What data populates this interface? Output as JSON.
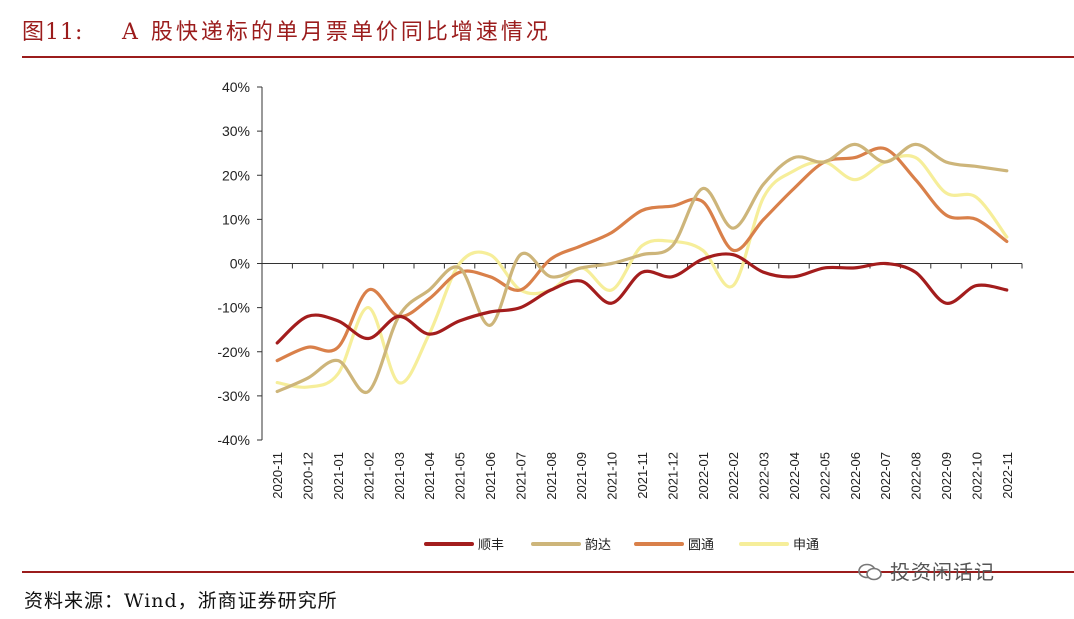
{
  "header": {
    "figure_label": "图11:",
    "title": "A 股快递标的单月票单价同比增速情况"
  },
  "source_note": "资料来源：Wind，浙商证券研究所",
  "watermark": "投资闲话记",
  "chart_data": {
    "type": "line",
    "title": "",
    "xlabel": "",
    "ylabel": "",
    "ylim": [
      -40,
      40
    ],
    "y_ticks": [
      "40%",
      "30%",
      "20%",
      "10%",
      "0%",
      "-10%",
      "-20%",
      "-30%",
      "-40%"
    ],
    "y_tick_values": [
      40,
      30,
      20,
      10,
      0,
      -10,
      -20,
      -30,
      -40
    ],
    "categories": [
      "2020-11",
      "2020-12",
      "2021-01",
      "2021-02",
      "2021-03",
      "2021-04",
      "2021-05",
      "2021-06",
      "2021-07",
      "2021-08",
      "2021-09",
      "2021-10",
      "2021-11",
      "2021-12",
      "2022-01",
      "2022-02",
      "2022-03",
      "2022-04",
      "2022-05",
      "2022-06",
      "2022-07",
      "2022-08",
      "2022-09",
      "2022-10",
      "2022-11"
    ],
    "legend_position": "bottom",
    "grid": false,
    "series": [
      {
        "name": "顺丰",
        "color": "#a31d1d",
        "values": [
          -18,
          -12,
          -13,
          -17,
          -12,
          -16,
          -13,
          -11,
          -10,
          -6,
          -4,
          -9,
          -2,
          -3,
          1,
          2,
          -2,
          -3,
          -1,
          -1,
          0,
          -2,
          -9,
          -5,
          -6
        ]
      },
      {
        "name": "韵达",
        "color": "#cdb57a",
        "values": [
          -29,
          -26,
          -22,
          -29,
          -12,
          -6,
          -1,
          -14,
          2,
          -3,
          -1,
          0,
          2,
          4,
          17,
          8,
          18,
          24,
          23,
          27,
          23,
          27,
          23,
          22,
          21
        ]
      },
      {
        "name": "圆通",
        "color": "#d9804a",
        "values": [
          -22,
          -19,
          -19,
          -6,
          -12,
          -8,
          -2,
          -3,
          -6,
          1,
          4,
          7,
          12,
          13,
          14,
          3,
          10,
          17,
          23,
          24,
          26,
          19,
          11,
          10,
          5
        ]
      },
      {
        "name": "申通",
        "color": "#f6ee9a",
        "values": [
          -27,
          -28,
          -25,
          -10,
          -27,
          -16,
          0,
          2,
          -6,
          -6,
          -1,
          -6,
          4,
          5,
          3,
          -5,
          15,
          21,
          23,
          19,
          23,
          24,
          16,
          15,
          6
        ]
      }
    ]
  }
}
